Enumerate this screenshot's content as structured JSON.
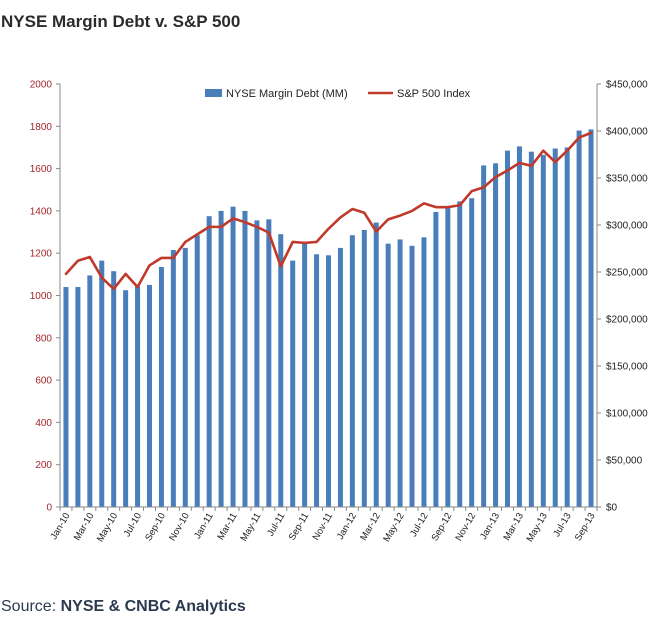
{
  "title": "NYSE Margin Debt v. S&P 500",
  "source": {
    "label": "Source:",
    "name": "NYSE & CNBC Analytics"
  },
  "chart_data": {
    "type": "bar",
    "title": "NYSE Margin Debt v. S&P 500",
    "xlabel": "",
    "ylabel": "",
    "categories": [
      "Jan-10",
      "Feb-10",
      "Mar-10",
      "Apr-10",
      "May-10",
      "Jun-10",
      "Jul-10",
      "Aug-10",
      "Sep-10",
      "Oct-10",
      "Nov-10",
      "Dec-10",
      "Jan-11",
      "Feb-11",
      "Mar-11",
      "Apr-11",
      "May-11",
      "Jun-11",
      "Jul-11",
      "Aug-11",
      "Sep-11",
      "Oct-11",
      "Nov-11",
      "Dec-11",
      "Jan-12",
      "Feb-12",
      "Mar-12",
      "Apr-12",
      "May-12",
      "Jun-12",
      "Jul-12",
      "Aug-12",
      "Sep-12",
      "Oct-12",
      "Nov-12",
      "Dec-12",
      "Jan-13",
      "Feb-13",
      "Mar-13",
      "Apr-13",
      "May-13",
      "Jun-13",
      "Jul-13",
      "Aug-13",
      "Sep-13"
    ],
    "x_tick_labels": [
      "Jan-10",
      "Mar-10",
      "May-10",
      "Jul-10",
      "Sep-10",
      "Nov-10",
      "Jan-11",
      "Mar-11",
      "May-11",
      "Jul-11",
      "Sep-11",
      "Nov-11",
      "Jan-12",
      "Mar-12",
      "May-12",
      "Jul-12",
      "Sep-12",
      "Nov-12",
      "Jan-13",
      "Mar-13",
      "May-13",
      "Jul-13",
      "Sep-13"
    ],
    "series": [
      {
        "name": "NYSE Margin Debt (MM)",
        "type": "bar",
        "axis": "left",
        "color": "#4a7ebb",
        "values": [
          1040,
          1040,
          1095,
          1165,
          1115,
          1025,
          1045,
          1050,
          1135,
          1215,
          1225,
          1285,
          1375,
          1400,
          1420,
          1400,
          1355,
          1360,
          1290,
          1165,
          1255,
          1195,
          1190,
          1225,
          1285,
          1310,
          1345,
          1245,
          1265,
          1235,
          1275,
          1395,
          1415,
          1445,
          1460,
          1615,
          1625,
          1685,
          1705,
          1680,
          1665,
          1695,
          1700,
          1780,
          1785
        ]
      },
      {
        "name": "S&P 500 Index",
        "type": "line",
        "axis": "right",
        "color": "#c0392b",
        "values": [
          248000,
          262000,
          266000,
          244000,
          232000,
          248000,
          234000,
          257000,
          265000,
          265000,
          282000,
          290000,
          298000,
          298000,
          307000,
          303000,
          298000,
          292000,
          256000,
          282000,
          281000,
          282000,
          296000,
          308000,
          317000,
          313000,
          293000,
          306000,
          310000,
          315000,
          323000,
          319000,
          319000,
          321000,
          336000,
          340000,
          351000,
          358000,
          366000,
          363000,
          379000,
          367000,
          379000,
          393000,
          398000
        ]
      }
    ],
    "left_axis": {
      "ylim": [
        0,
        2000
      ],
      "ticks": [
        "0",
        "200",
        "400",
        "600",
        "800",
        "1000",
        "1200",
        "1400",
        "1600",
        "1800",
        "2000"
      ],
      "tick_values": [
        0,
        200,
        400,
        600,
        800,
        1000,
        1200,
        1400,
        1600,
        1800,
        2000
      ],
      "color": "#a0272a"
    },
    "right_axis": {
      "ylim": [
        0,
        450000
      ],
      "ticks": [
        "$0",
        "$50,000",
        "$100,000",
        "$150,000",
        "$200,000",
        "$250,000",
        "$300,000",
        "$350,000",
        "$400,000",
        "$450,000"
      ],
      "tick_values": [
        0,
        50000,
        100000,
        150000,
        200000,
        250000,
        300000,
        350000,
        400000,
        450000
      ]
    },
    "grid": false,
    "legend_position": "top-center"
  }
}
